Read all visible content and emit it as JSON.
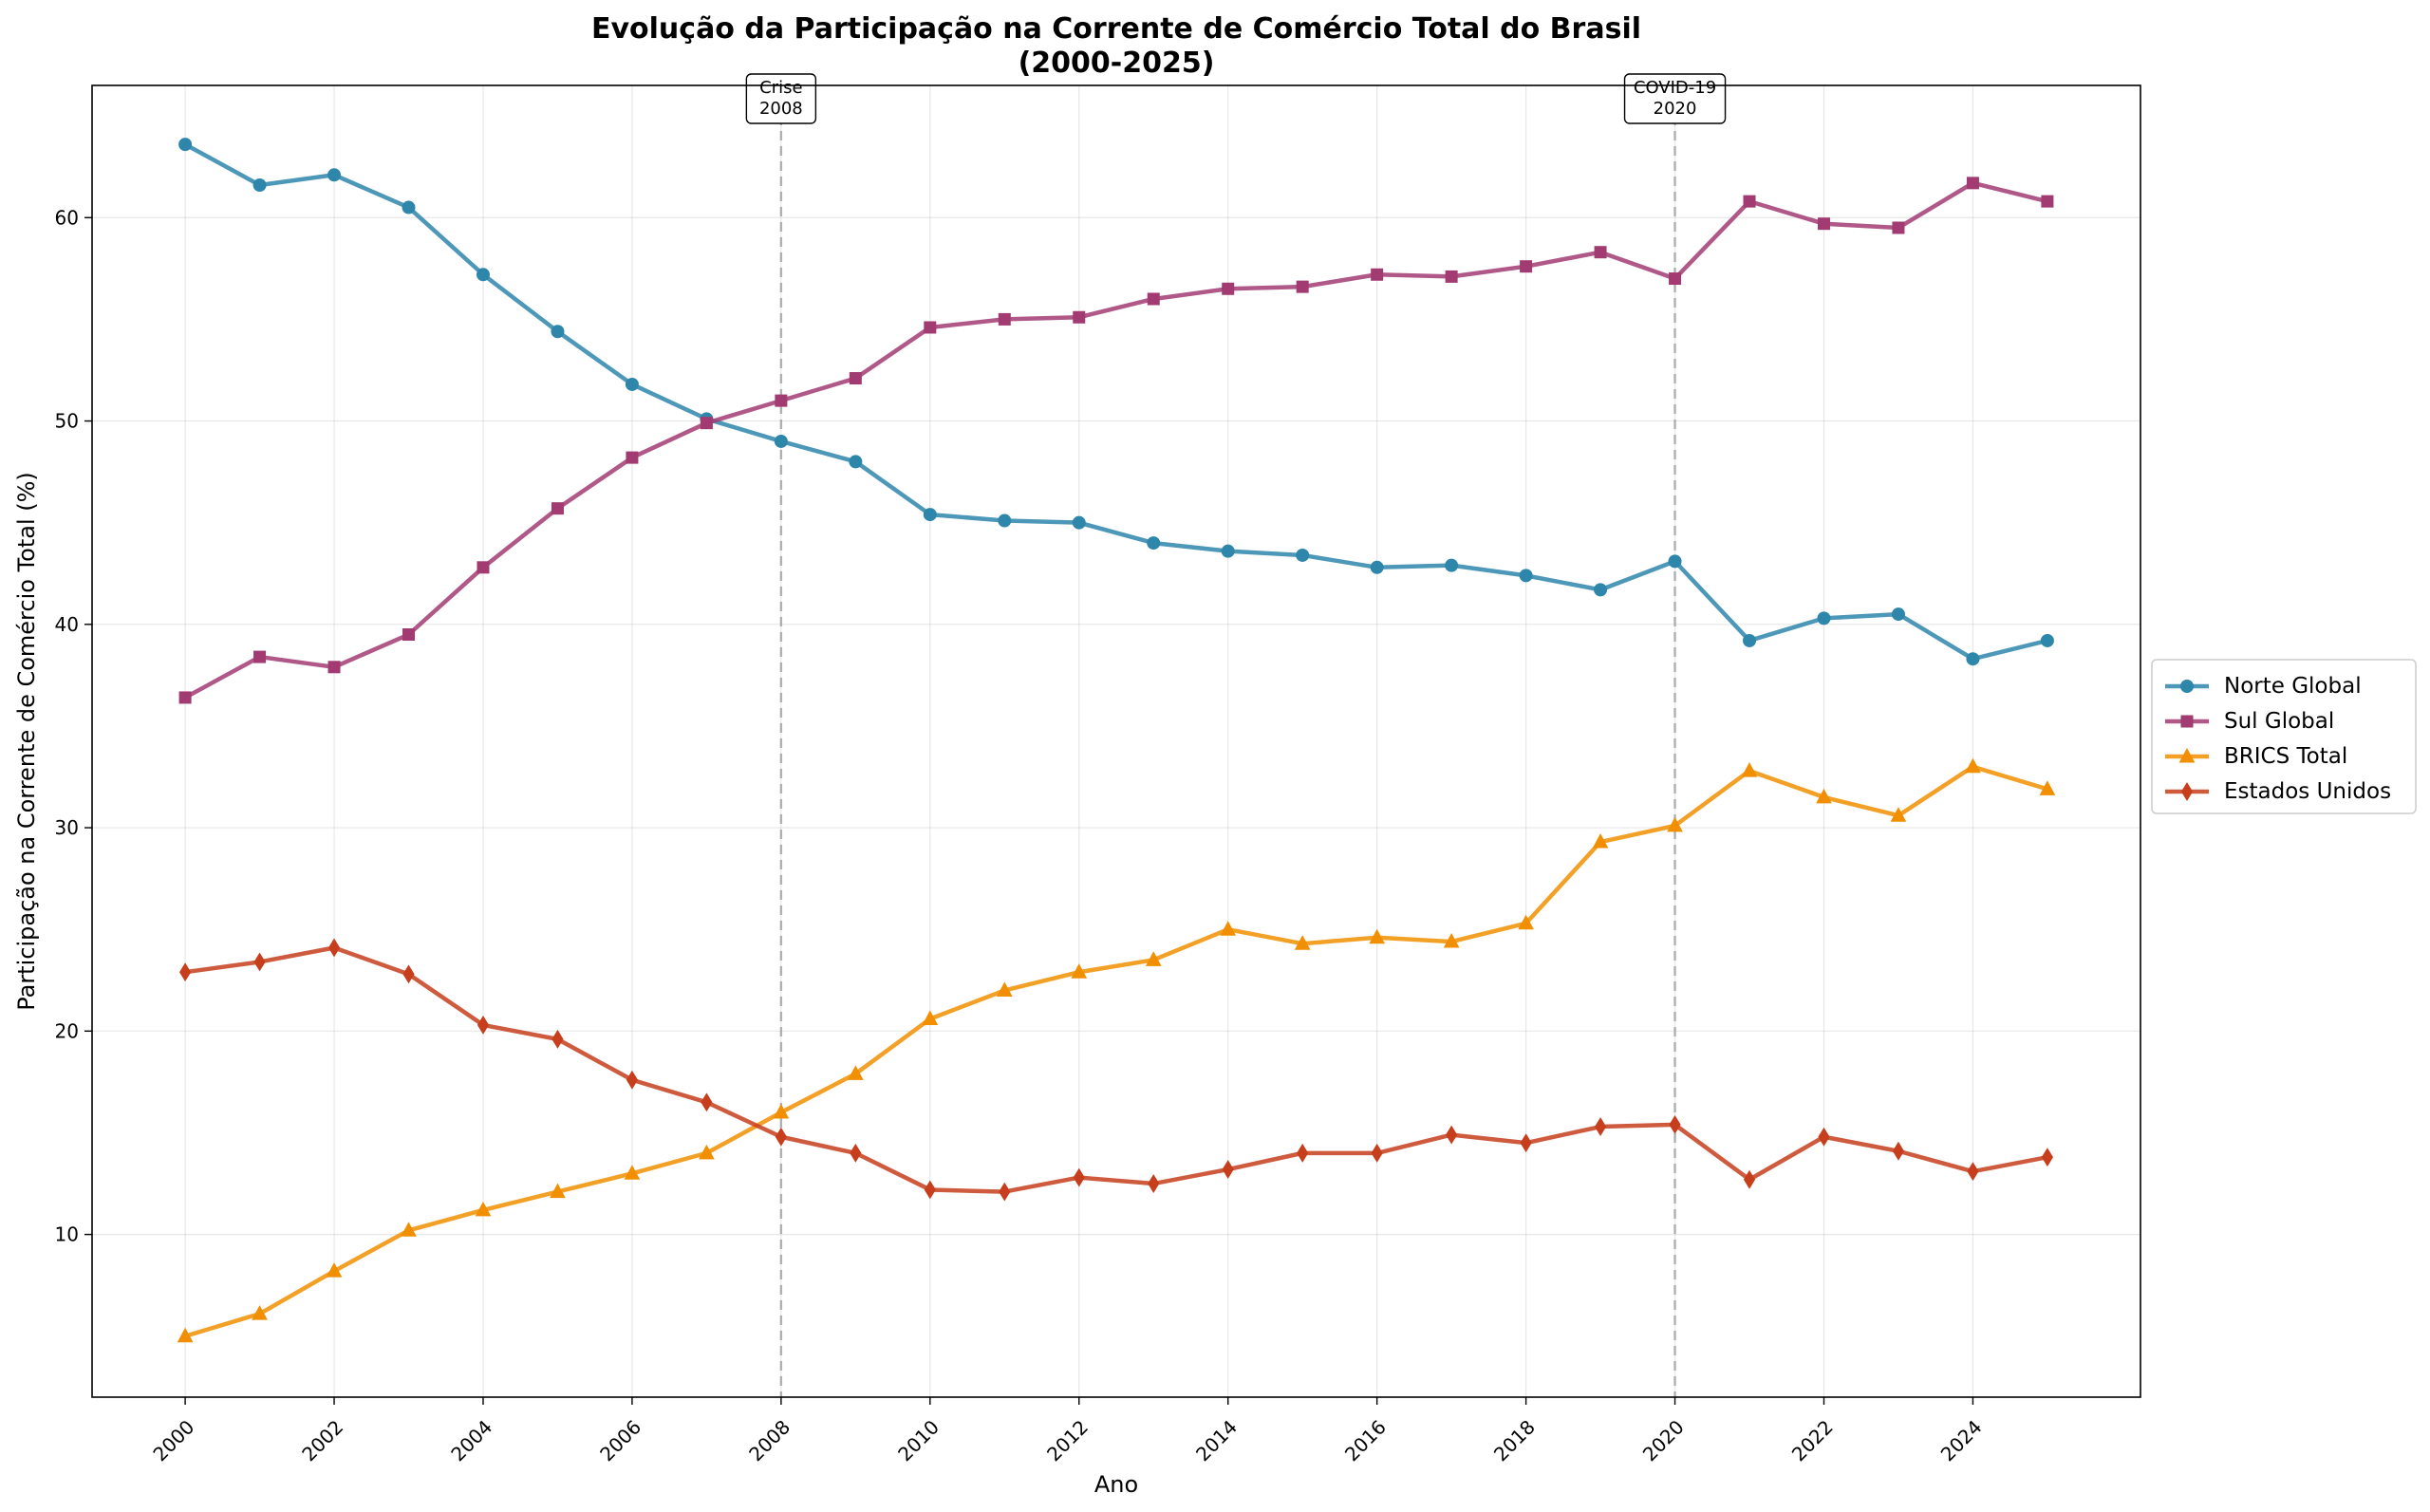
{
  "chart_data": {
    "type": "line",
    "title": "Evolução da Participação na Corrente de Comércio Total do Brasil",
    "subtitle": "(2000-2025)",
    "xlabel": "Ano",
    "ylabel": "Participação na Corrente de Comércio Total (%)",
    "x": [
      2000,
      2001,
      2002,
      2003,
      2004,
      2005,
      2006,
      2007,
      2008,
      2009,
      2010,
      2011,
      2012,
      2013,
      2014,
      2015,
      2016,
      2017,
      2018,
      2019,
      2020,
      2021,
      2022,
      2023,
      2024,
      2025
    ],
    "xticks": [
      "2000",
      "2002",
      "2004",
      "2006",
      "2008",
      "2010",
      "2012",
      "2014",
      "2016",
      "2018",
      "2020",
      "2022",
      "2024"
    ],
    "yticks": [
      "10",
      "20",
      "30",
      "40",
      "50",
      "60"
    ],
    "xlim": [
      1998.75,
      2026.25
    ],
    "ylim": [
      2.0,
      66.5
    ],
    "grid": true,
    "legend_position": "right-center",
    "series": [
      {
        "name": "Norte Global",
        "color": "#2E86AB",
        "marker": "circle",
        "values": [
          63.6,
          61.6,
          62.1,
          60.5,
          57.2,
          54.4,
          51.8,
          50.1,
          49.0,
          48.0,
          45.4,
          45.1,
          45.0,
          44.0,
          43.6,
          43.4,
          42.8,
          42.9,
          42.4,
          41.7,
          43.1,
          39.2,
          40.3,
          40.5,
          38.3,
          39.2
        ]
      },
      {
        "name": "Sul Global",
        "color": "#A23B72",
        "marker": "square",
        "values": [
          36.4,
          38.4,
          37.9,
          39.5,
          42.8,
          45.7,
          48.2,
          49.9,
          51.0,
          52.1,
          54.6,
          55.0,
          55.1,
          56.0,
          56.5,
          56.6,
          57.2,
          57.1,
          57.6,
          58.3,
          57.0,
          60.8,
          59.7,
          59.5,
          61.7,
          60.8
        ]
      },
      {
        "name": "BRICS Total",
        "color": "#F18F01",
        "marker": "triangle",
        "values": [
          5.0,
          6.1,
          8.2,
          10.2,
          11.2,
          12.1,
          13.0,
          14.0,
          16.0,
          17.9,
          20.6,
          22.0,
          22.9,
          23.5,
          25.0,
          24.3,
          24.6,
          24.4,
          25.3,
          29.3,
          30.1,
          32.8,
          31.5,
          30.6,
          33.0,
          31.9
        ]
      },
      {
        "name": "Estados Unidos",
        "color": "#C73E1D",
        "marker": "diamond",
        "values": [
          22.9,
          23.4,
          24.1,
          22.8,
          20.3,
          19.6,
          17.6,
          16.5,
          14.8,
          14.0,
          12.2,
          12.1,
          12.8,
          12.5,
          13.2,
          14.0,
          14.0,
          14.9,
          14.5,
          15.3,
          15.4,
          12.7,
          14.8,
          14.1,
          13.1,
          13.8
        ]
      }
    ],
    "annotations": [
      {
        "x": 2008,
        "line1": "Crise",
        "line2": "2008"
      },
      {
        "x": 2020,
        "line1": "COVID-19",
        "line2": "2020"
      }
    ]
  }
}
